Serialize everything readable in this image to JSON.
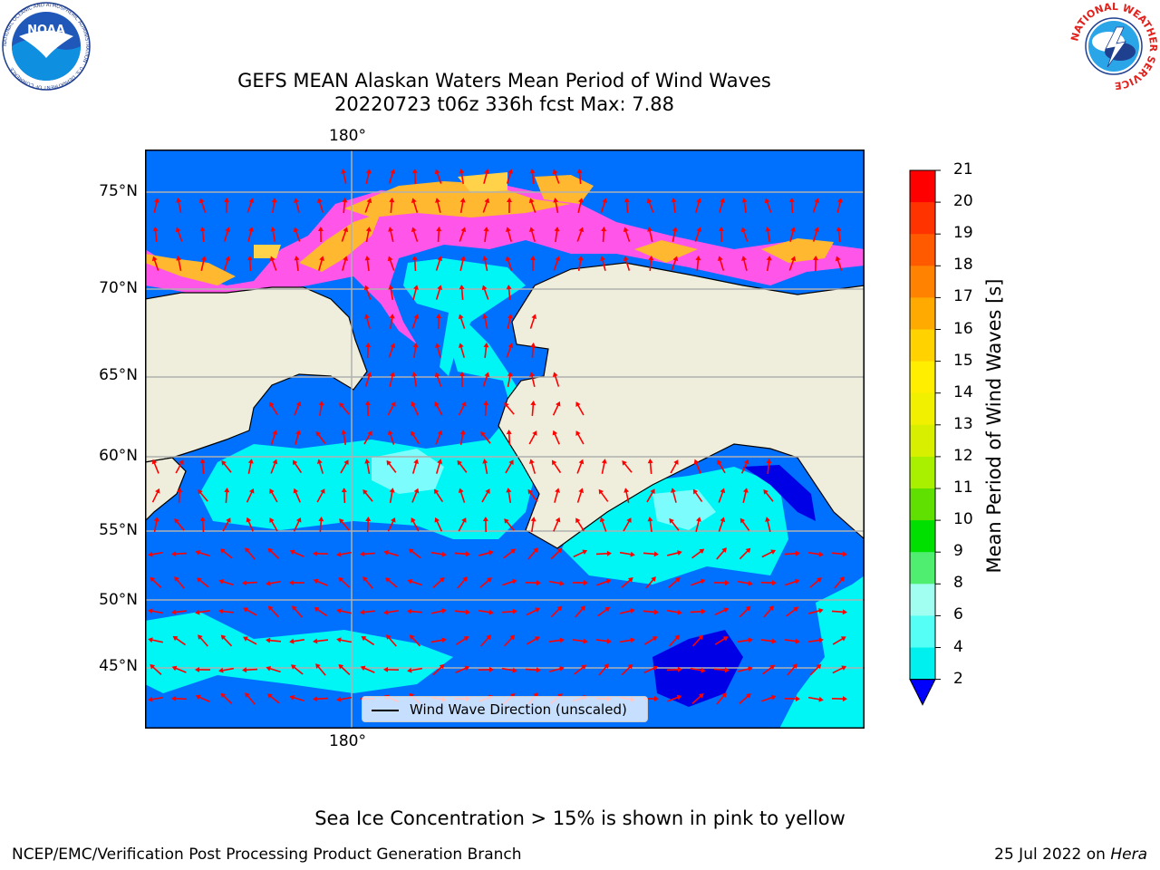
{
  "title": {
    "line1": "GEFS MEAN Alaskan Waters Mean Period of Wind Waves",
    "line2": "20220723 t06z 336h fcst   Max: 7.88"
  },
  "map": {
    "lon_label_top": "180°",
    "lon_label_bottom": "180°",
    "lat_labels": [
      "75°N",
      "70°N",
      "65°N",
      "60°N",
      "55°N",
      "50°N",
      "45°N"
    ],
    "legend_label": "Wind Wave Direction (unscaled)",
    "colors": {
      "land": "#efeedc",
      "ocean_low": "#0070ff",
      "ocean_mid": "#00f5f5",
      "ocean_hi": "#7cfcfc",
      "ocean_deep": "#0000e6",
      "ice_pink": "#ff55e8",
      "ice_orange": "#ffb830",
      "ice_yellow": "#ffd24a",
      "arrow": "#ff0000",
      "grid": "#b0b0b0"
    }
  },
  "colorbar": {
    "title": "Mean Period of Wind Waves [s]",
    "labels": [
      "21",
      "20",
      "19",
      "18",
      "17",
      "16",
      "15",
      "14",
      "13",
      "12",
      "11",
      "10",
      "9",
      "8",
      "6",
      "4",
      "2"
    ],
    "colors": [
      "#ff0000",
      "#ff3300",
      "#ff5a00",
      "#ff8200",
      "#ffaa00",
      "#ffd200",
      "#ffee00",
      "#f0f000",
      "#d8f000",
      "#a8f000",
      "#60e000",
      "#00e000",
      "#50ee70",
      "#a0fff0",
      "#55fff5",
      "#00f0f0",
      "#0078ff"
    ],
    "under_color": "#0000ff"
  },
  "footer": {
    "note": "Sea Ice Concentration > 15% is shown in pink to yellow",
    "left": "NCEP/EMC/Verification Post Processing Product Generation Branch",
    "right_prefix": "25 Jul 2022 on ",
    "right_host": "Hera"
  },
  "logos": {
    "noaa_text": "NOAA",
    "noaa_ring": "NATIONAL OCEANIC AND ATMOSPHERIC ADMINISTRATION · U.S. DEPARTMENT OF COMMERCE",
    "nws_ring": "NATIONAL WEATHER SERVICE"
  }
}
